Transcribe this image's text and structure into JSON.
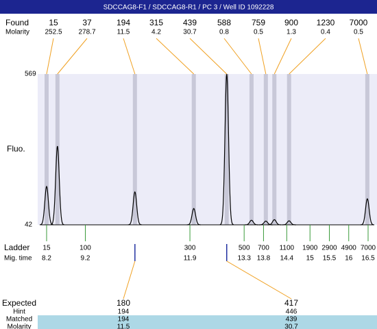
{
  "chart_data": {
    "type": "electropherogram",
    "title": "SDCCAG8-F1 / SDCCAG8-R1 / PC 3 / Well ID 1092228",
    "ylabel": "Fluo.",
    "ylim": [
      42,
      569
    ],
    "yticks": [
      42,
      569
    ],
    "xlim": [
      7.97,
      16.73
    ],
    "found_label": "Found",
    "molarity_label": "Molarity",
    "peaks": {
      "sizes": [
        15,
        37,
        194,
        315,
        439,
        588,
        759,
        900,
        1230,
        7000
      ],
      "molarity": [
        252.5,
        278.7,
        11.5,
        4.2,
        30.7,
        0.8,
        0.5,
        1.3,
        0.4,
        0.5
      ],
      "times": [
        8.2,
        8.48,
        10.48,
        12.0,
        12.85,
        13.49,
        13.86,
        14.08,
        14.46,
        16.48
      ],
      "heights": [
        176,
        317,
        157,
        99,
        569,
        58,
        55,
        60,
        56,
        133
      ]
    },
    "ladder_label": "Ladder",
    "time_label": "Mig. time",
    "ladder": {
      "sizes": [
        15,
        100,
        300,
        500,
        700,
        1100,
        1900,
        2900,
        4900,
        7000
      ],
      "times": [
        8.2,
        9.2,
        11.9,
        13.3,
        13.8,
        14.4,
        15,
        15.5,
        16,
        16.5
      ]
    },
    "table": {
      "row_labels": [
        "Expected",
        "Hint",
        "Matched",
        "Molarity"
      ],
      "expected": [
        180,
        417
      ],
      "hint": [
        194,
        446
      ],
      "matched": [
        194,
        439
      ],
      "molarity": [
        11.5,
        30.7
      ]
    }
  }
}
